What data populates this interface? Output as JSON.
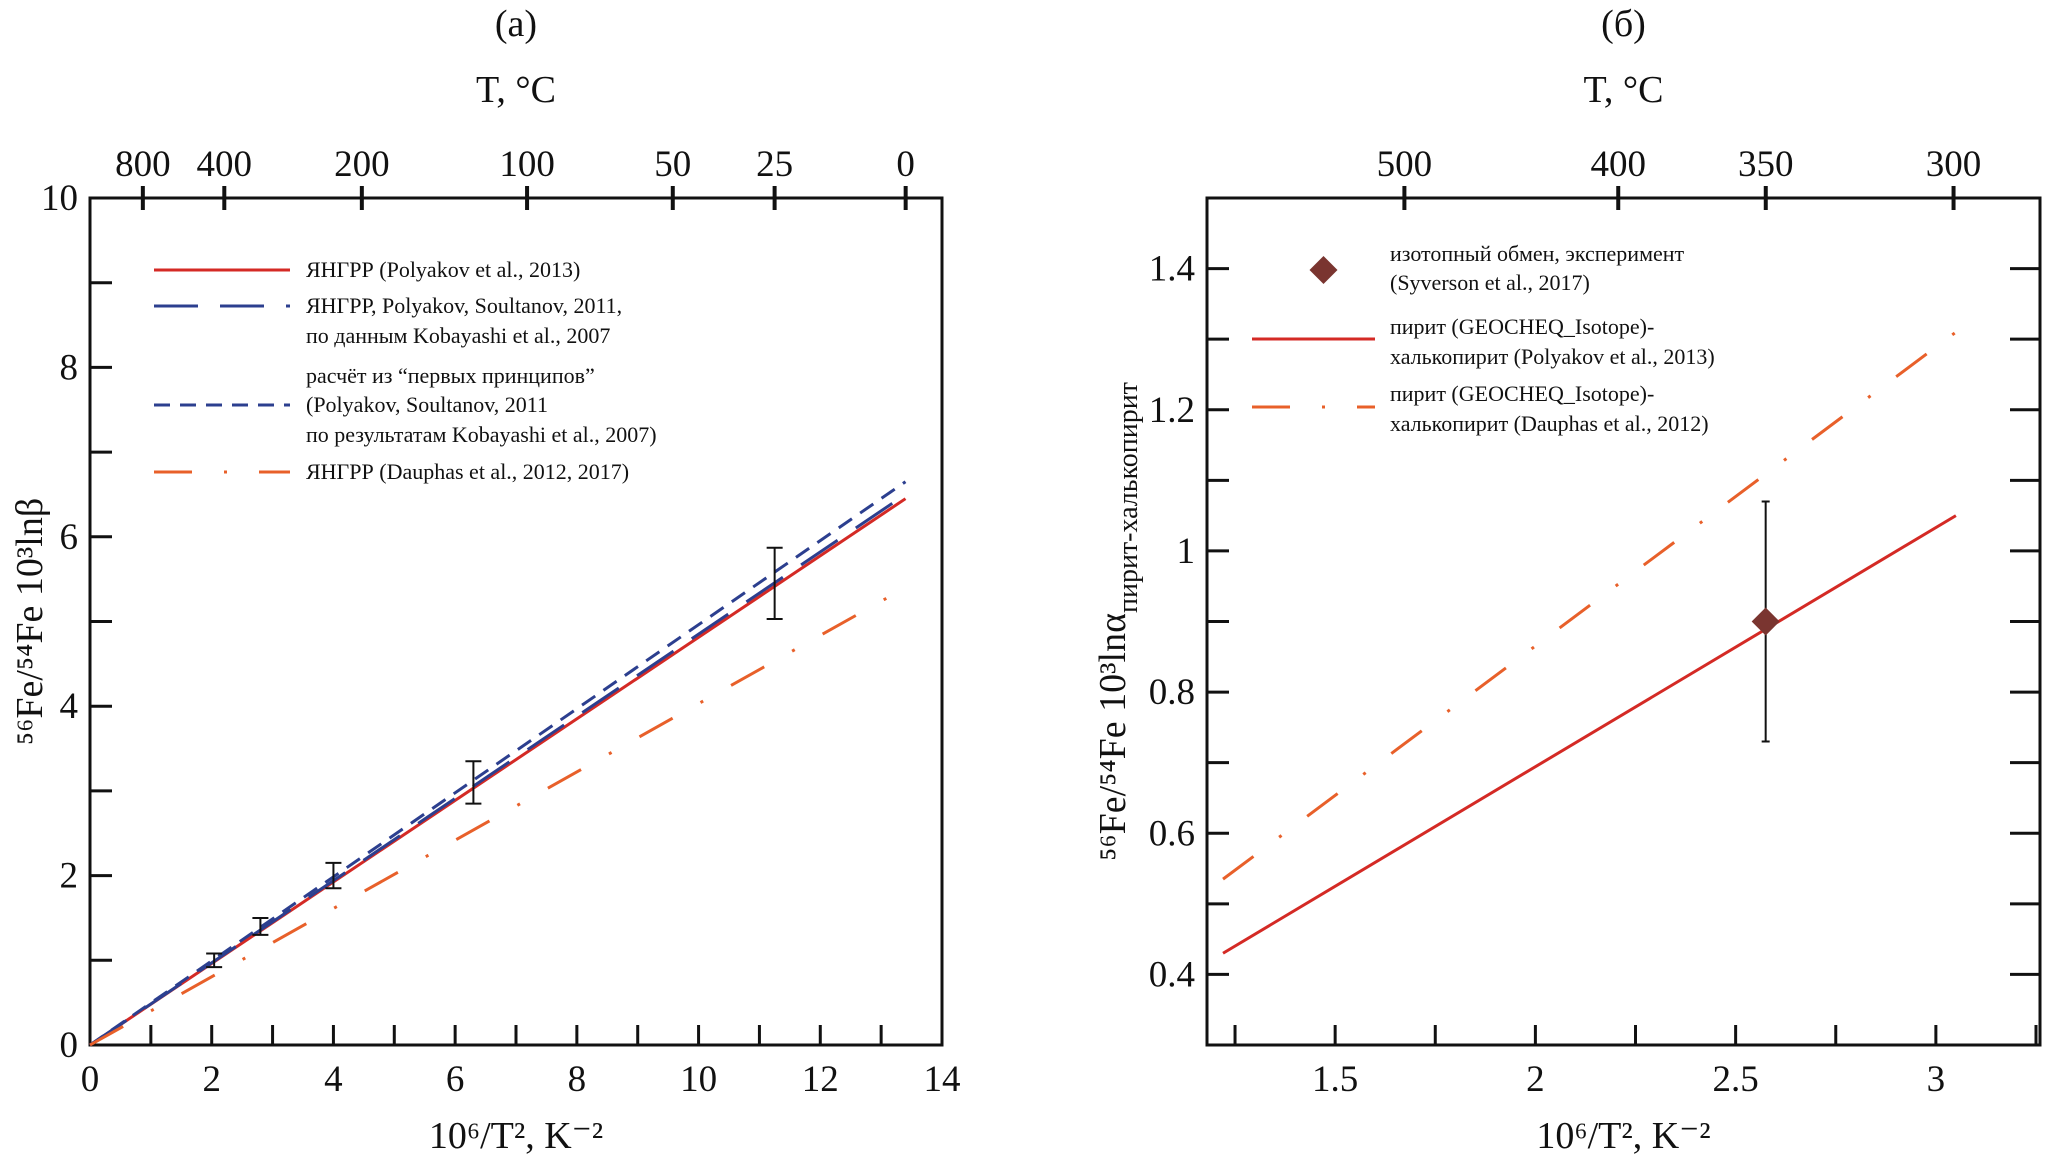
{
  "chart_data": [
    {
      "type": "line",
      "panel_label": "(a)",
      "top_axis_title": "T, °C",
      "top_ticks": [
        800,
        400,
        200,
        100,
        50,
        25,
        0
      ],
      "xlabel": "10⁶/T², K⁻²",
      "ylabel": "⁵⁶Fe/⁵⁴Fe 10³lnβ",
      "xlim": [
        0,
        14
      ],
      "ylim": [
        0,
        10
      ],
      "xticks": [
        0,
        2,
        4,
        6,
        8,
        10,
        12,
        14
      ],
      "yticks": [
        0,
        2,
        4,
        6,
        8,
        10
      ],
      "grid": false,
      "legend_placement": "top-left",
      "series": [
        {
          "name": "ЯНГРР (Polyakov et al., 2013)",
          "style": "solid",
          "color": "#d42a25",
          "x": [
            0,
            13.4
          ],
          "y": [
            0,
            6.45
          ]
        },
        {
          "name": "ЯНГРР, Polyakov, Soultanov, 2011, по данным Kobayashi et al., 2007",
          "style": "longdash",
          "color": "#2c3f8f",
          "x": [
            0,
            13.4
          ],
          "y": [
            0,
            6.5
          ]
        },
        {
          "name": "расчёт из “первых принципов” (Polyakov, Soultanov, 2011 по результатам Kobayashi et al., 2007)",
          "style": "shortdash",
          "color": "#2c3f8f",
          "x": [
            0,
            13.4
          ],
          "y": [
            0,
            6.65
          ]
        },
        {
          "name": "ЯНГРР (Dauphas et al., 2012, 2017)",
          "style": "dashdot",
          "color": "#e8602a",
          "x": [
            0,
            13.4
          ],
          "y": [
            0,
            5.4
          ]
        }
      ],
      "legend_lines": [
        [
          "ЯНГРР (Polyakov et al., 2013)"
        ],
        [
          "ЯНГРР, Polyakov, Soultanov, 2011,",
          "по данным Kobayashi et al., 2007"
        ],
        [
          "расчёт из “первых принципов”",
          "(Polyakov, Soultanov, 2011",
          "по результатам Kobayashi et al., 2007)"
        ],
        [
          "ЯНГРР (Dauphas et al., 2012, 2017)"
        ]
      ],
      "error_bars": [
        {
          "x": 2.04,
          "y": 1.0,
          "low": 0.92,
          "high": 1.08
        },
        {
          "x": 2.8,
          "y": 1.4,
          "low": 1.3,
          "high": 1.5
        },
        {
          "x": 4.0,
          "y": 2.0,
          "low": 1.85,
          "high": 2.15
        },
        {
          "x": 6.3,
          "y": 3.1,
          "low": 2.85,
          "high": 3.35
        },
        {
          "x": 11.25,
          "y": 5.45,
          "low": 5.03,
          "high": 5.87
        }
      ]
    },
    {
      "type": "line",
      "panel_label": "(б)",
      "top_axis_title": "T, °C",
      "top_ticks": [
        500,
        400,
        350,
        300
      ],
      "xlabel": "10⁶/T², K⁻²",
      "ylabel": "⁵⁶Fe/⁵⁴Fe 10³lnα",
      "ylabel_subscript": "пирит-халькопирит",
      "xlim": [
        1.18,
        3.26
      ],
      "ylim": [
        0.3,
        1.5
      ],
      "xticks": [
        1.5,
        2,
        2.5,
        3
      ],
      "xtick_labels": [
        "1.5",
        "2",
        "2.5",
        "3"
      ],
      "yticks": [
        0.4,
        0.6,
        0.8,
        1.0,
        1.2,
        1.4
      ],
      "ytick_labels": [
        "0.4",
        "0.6",
        "0.8",
        "1",
        "1.2",
        "1.4"
      ],
      "grid": false,
      "legend_placement": "top-left",
      "series": [
        {
          "name": "пирит (GEOCHEQ_Isotope)-халькопирит (Polyakov et al., 2013)",
          "style": "solid",
          "color": "#d42a25",
          "x": [
            1.22,
            3.05
          ],
          "y": [
            0.43,
            1.05
          ]
        },
        {
          "name": "пирит (GEOCHEQ_Isotope)-халькопирит (Dauphas et al., 2012)",
          "style": "dashdot",
          "color": "#e8602a",
          "x": [
            1.22,
            3.05
          ],
          "y": [
            0.535,
            1.31
          ]
        }
      ],
      "points": [
        {
          "name": "изотопный обмен, эксперимент (Syverson et al., 2017)",
          "x": 2.575,
          "y": 0.9,
          "low": 0.73,
          "high": 1.07,
          "color": "#7a3530",
          "marker": "diamond"
        }
      ],
      "legend_lines": [
        [
          "изотопный обмен, эксперимент",
          "(Syverson et al., 2017)"
        ],
        [
          "пирит (GEOCHEQ_Isotope)-",
          "халькопирит (Polyakov et al., 2013)"
        ],
        [
          "пирит (GEOCHEQ_Isotope)-",
          "халькопирит (Dauphas et al., 2012)"
        ]
      ]
    }
  ]
}
